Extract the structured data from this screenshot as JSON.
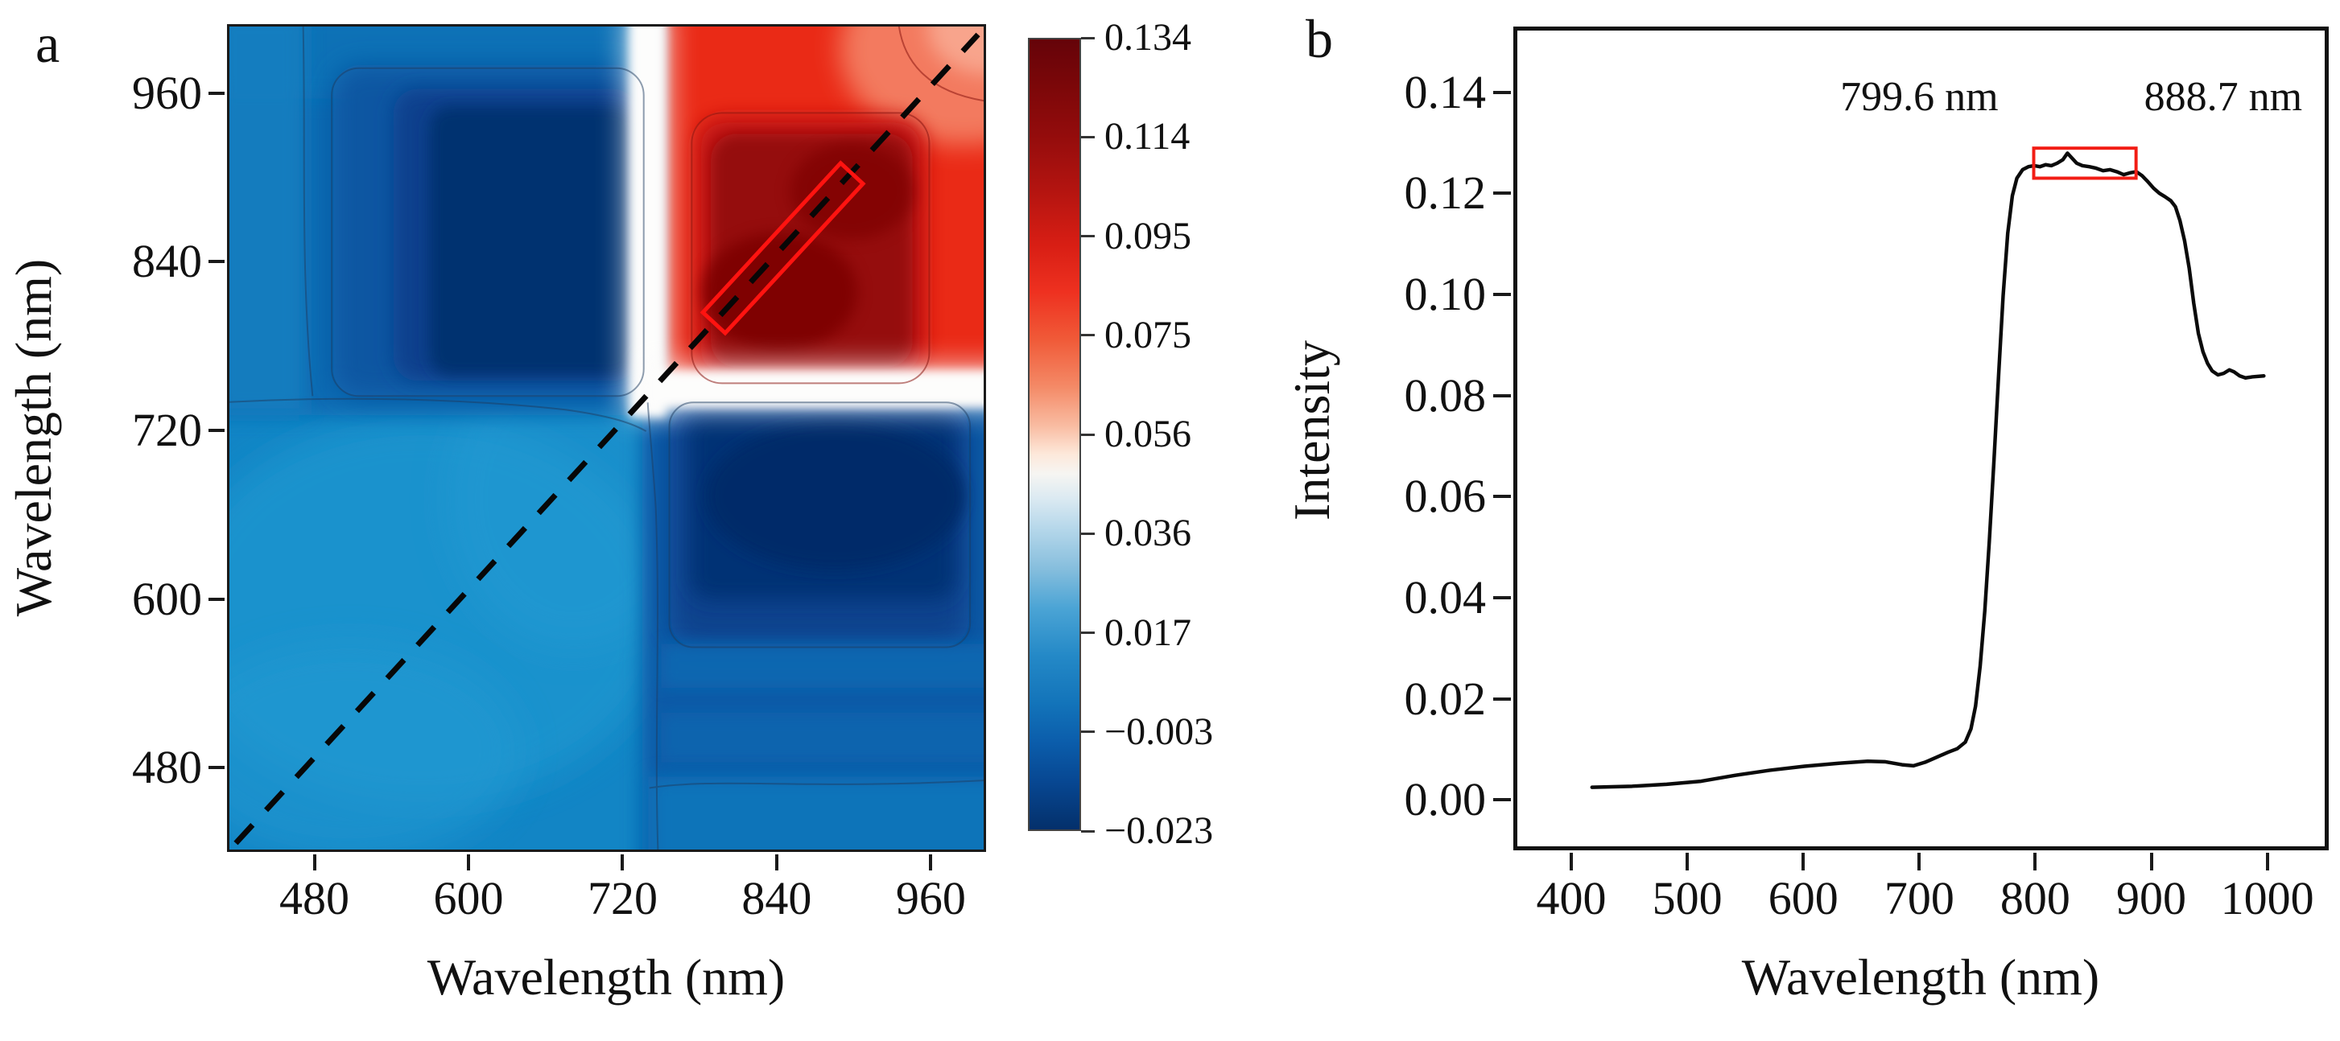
{
  "figure": {
    "panel_a_label": "a",
    "panel_b_label": "b",
    "panel_a": {
      "x_title": "Wavelength (nm)",
      "y_title": "Wavelength (nm)"
    },
    "panel_b": {
      "x_title": "Wavelength (nm)",
      "y_title": "Intensity"
    }
  },
  "chart_data": [
    {
      "type": "heatmap",
      "title": "Panel a: synchronous 2D correlation contour map",
      "xlabel": "Wavelength (nm)",
      "ylabel": "Wavelength (nm)",
      "xlim": [
        412,
        1003
      ],
      "ylim": [
        420,
        1009
      ],
      "grid": false,
      "x_ticks": [
        480,
        600,
        720,
        840,
        960
      ],
      "x_tick_labels": [
        "480",
        "600",
        "720",
        "840",
        "960"
      ],
      "y_ticks": [
        480,
        600,
        720,
        840,
        960
      ],
      "y_tick_labels": [
        "480",
        "600",
        "720",
        "840",
        "960"
      ],
      "colorbar": {
        "max": 0.134,
        "min": -0.023,
        "tick_values": [
          0.134,
          0.114,
          0.095,
          0.075,
          0.056,
          0.036,
          0.017,
          -0.003,
          -0.023
        ],
        "tick_labels": [
          "0.134",
          "0.114",
          "0.095",
          "0.075",
          "0.056",
          "0.036",
          "0.017",
          "−0.003",
          "−0.023"
        ],
        "top_color": "#650309",
        "zero_color": "#f6f5f2",
        "bottom_color": "#04306b"
      },
      "regions": [
        {
          "x_range": "760–1000 nm",
          "y_range": "760–1000 nm",
          "sign": "positive auto-peak",
          "value": "≈ 0.10 to 0.134",
          "color": "red with dark-red core"
        },
        {
          "x_range": "420–730 nm",
          "y_range": "760–1000 nm",
          "sign": "negative cross-peak",
          "value": "≈ −0.003 to −0.023",
          "color": "dark blue"
        },
        {
          "x_range": "760–1000 nm",
          "y_range": "420–730 nm",
          "sign": "negative cross-peak",
          "value": "≈ −0.003 to −0.023",
          "color": "dark blue"
        },
        {
          "x_range": "420–730 nm",
          "y_range": "420–730 nm",
          "sign": "weak positive",
          "value": "≈ 0.01 to 0.02",
          "color": "light blue"
        }
      ],
      "annotations": [
        {
          "type": "dashed-diagonal",
          "desc": "identity line y = x from (420,420) to (1000,1000)"
        },
        {
          "type": "red-rectangle",
          "desc": "rotated highlight box along diagonal ≈ 790–905 nm"
        }
      ]
    },
    {
      "type": "line",
      "title": "Panel b: intensity spectrum",
      "xlabel": "Wavelength (nm)",
      "ylabel": "Intensity",
      "xlim": [
        350,
        1053
      ],
      "ylim": [
        -0.01,
        0.153
      ],
      "grid": false,
      "x_ticks": [
        400,
        500,
        600,
        700,
        800,
        900,
        1000
      ],
      "x_tick_labels": [
        "400",
        "500",
        "600",
        "700",
        "800",
        "900",
        "1000"
      ],
      "y_ticks": [
        0.0,
        0.02,
        0.04,
        0.06,
        0.08,
        0.1,
        0.12,
        0.14
      ],
      "y_tick_labels": [
        "0.00",
        "0.02",
        "0.04",
        "0.06",
        "0.08",
        "0.10",
        "0.12",
        "0.14"
      ],
      "line_color": "#0b0b0b",
      "points": [
        [
          415,
          0.0018
        ],
        [
          450,
          0.002
        ],
        [
          480,
          0.0024
        ],
        [
          510,
          0.003
        ],
        [
          540,
          0.0042
        ],
        [
          570,
          0.0052
        ],
        [
          600,
          0.006
        ],
        [
          630,
          0.0066
        ],
        [
          655,
          0.007
        ],
        [
          670,
          0.0069
        ],
        [
          685,
          0.0063
        ],
        [
          695,
          0.0061
        ],
        [
          705,
          0.0068
        ],
        [
          715,
          0.0078
        ],
        [
          725,
          0.0088
        ],
        [
          733,
          0.0095
        ],
        [
          740,
          0.0108
        ],
        [
          745,
          0.0135
        ],
        [
          749,
          0.018
        ],
        [
          753,
          0.026
        ],
        [
          757,
          0.037
        ],
        [
          761,
          0.051
        ],
        [
          765,
          0.067
        ],
        [
          769,
          0.084
        ],
        [
          773,
          0.1
        ],
        [
          777,
          0.1125
        ],
        [
          781,
          0.12
        ],
        [
          785,
          0.1235
        ],
        [
          790,
          0.1252
        ],
        [
          795,
          0.1258
        ],
        [
          800,
          0.126
        ],
        [
          805,
          0.1258
        ],
        [
          810,
          0.1262
        ],
        [
          815,
          0.126
        ],
        [
          820,
          0.1265
        ],
        [
          825,
          0.1272
        ],
        [
          829,
          0.1285
        ],
        [
          833,
          0.1275
        ],
        [
          837,
          0.1265
        ],
        [
          842,
          0.126
        ],
        [
          848,
          0.1258
        ],
        [
          854,
          0.1255
        ],
        [
          860,
          0.125
        ],
        [
          866,
          0.1252
        ],
        [
          872,
          0.1248
        ],
        [
          878,
          0.1242
        ],
        [
          884,
          0.1246
        ],
        [
          889,
          0.1248
        ],
        [
          894,
          0.124
        ],
        [
          899,
          0.1228
        ],
        [
          904,
          0.1215
        ],
        [
          909,
          0.1205
        ],
        [
          914,
          0.1198
        ],
        [
          919,
          0.119
        ],
        [
          923,
          0.1178
        ],
        [
          927,
          0.115
        ],
        [
          931,
          0.111
        ],
        [
          935,
          0.1055
        ],
        [
          939,
          0.0985
        ],
        [
          943,
          0.0925
        ],
        [
          947,
          0.0888
        ],
        [
          951,
          0.0865
        ],
        [
          955,
          0.085
        ],
        [
          960,
          0.0842
        ],
        [
          965,
          0.0845
        ],
        [
          970,
          0.0852
        ],
        [
          974,
          0.0848
        ],
        [
          979,
          0.084
        ],
        [
          984,
          0.0836
        ],
        [
          990,
          0.0838
        ],
        [
          1000,
          0.084
        ]
      ],
      "annotations": [
        {
          "text": "799.6 nm",
          "x": 700,
          "y": 0.139
        },
        {
          "text": "888.7 nm",
          "x": 962,
          "y": 0.139
        }
      ],
      "highlight_rect": {
        "x1": 799.6,
        "x2": 888.7,
        "y1": 0.1235,
        "y2": 0.1295,
        "color": "#f21d15"
      }
    }
  ]
}
